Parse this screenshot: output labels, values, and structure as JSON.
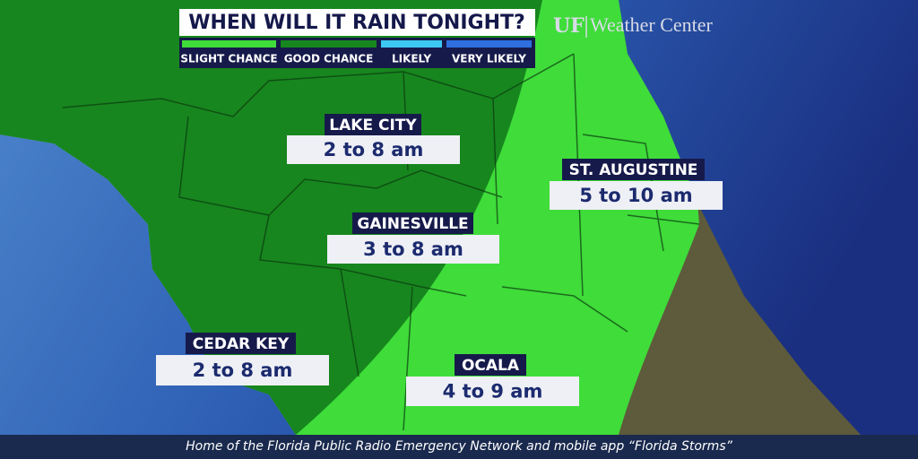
{
  "header": {
    "title": "WHEN WILL IT RAIN TONIGHT?"
  },
  "legend": [
    {
      "label": "SLIGHT CHANCE",
      "color": "#3fdc3a"
    },
    {
      "label": "GOOD CHANCE",
      "color": "#17861e"
    },
    {
      "label": "LIKELY",
      "color": "#3cc8f2"
    },
    {
      "label": "VERY LIKELY",
      "color": "#2f6fe0"
    }
  ],
  "brand": {
    "logo": "UF",
    "name": "Weather Center"
  },
  "cities": [
    {
      "name": "LAKE CITY",
      "time": "2 to 8 am"
    },
    {
      "name": "ST. AUGUSTINE",
      "time": "5 to 10 am"
    },
    {
      "name": "GAINESVILLE",
      "time": "3 to 8 am"
    },
    {
      "name": "CEDAR KEY",
      "time": "2 to 8 am"
    },
    {
      "name": "OCALA",
      "time": "4 to 9 am"
    }
  ],
  "footer": {
    "text": "Home of the Florida Public Radio Emergency Network and mobile app “Florida Storms”"
  }
}
